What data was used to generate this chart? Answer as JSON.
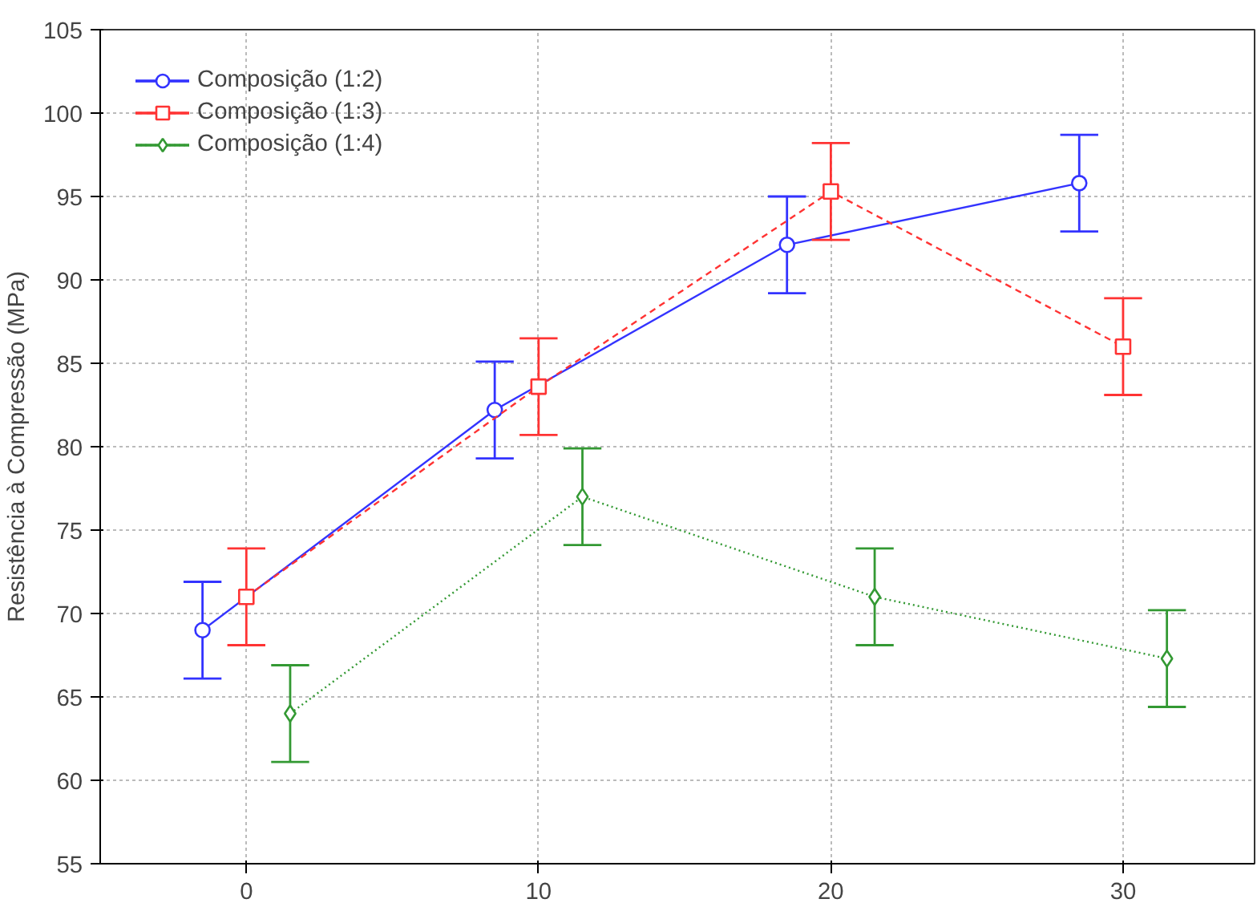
{
  "chart_data": {
    "type": "line",
    "ylabel": "Resistência à Compressão (MPa)",
    "xlim": [
      -5,
      34.5
    ],
    "ylim": [
      55,
      105
    ],
    "xticks": [
      0,
      10,
      20,
      30
    ],
    "yticks": [
      55,
      60,
      65,
      70,
      75,
      80,
      85,
      90,
      95,
      100,
      105
    ],
    "grid": true,
    "legend": "top left",
    "series": [
      {
        "name": "Composição (1:2)",
        "color": "#3333ff",
        "marker": "circle",
        "line_style": "solid",
        "x": [
          -1.5,
          8.5,
          18.5,
          28.5
        ],
        "values": [
          69,
          82.2,
          92.1,
          95.8
        ],
        "errors": [
          2.9,
          2.9,
          2.9,
          2.9
        ]
      },
      {
        "name": "Composição (1:3)",
        "color": "#ff3333",
        "marker": "square",
        "line_style": "dashed",
        "x": [
          0,
          10,
          20,
          30
        ],
        "values": [
          71,
          83.6,
          95.3,
          86
        ],
        "errors": [
          2.9,
          2.9,
          2.9,
          2.9
        ]
      },
      {
        "name": "Composição (1:4)",
        "color": "#339933",
        "marker": "diamond",
        "line_style": "dotted",
        "x": [
          1.5,
          11.5,
          21.5,
          31.5
        ],
        "values": [
          64,
          77,
          71,
          67.3
        ],
        "errors": [
          2.9,
          2.9,
          2.9,
          2.9
        ]
      }
    ]
  }
}
